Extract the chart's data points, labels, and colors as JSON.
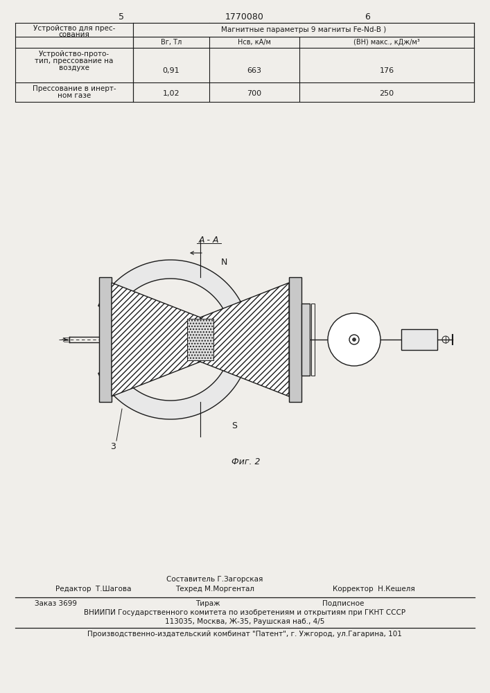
{
  "page_numbers": [
    "5",
    "1770080",
    "6"
  ],
  "table": {
    "col1_header1": "Устройство для прес-",
    "col1_header2": "сования",
    "merged_header": "Магнитные параметры 9 магниты Fe-Nd-B )",
    "col2_header": "Вг, Тл",
    "col3_header": "Нсв, кА/м",
    "col4_header": "(ВН) макс., кДж/м³",
    "row1_col1_1": "Устройство-прото-",
    "row1_col1_2": "тип, прессование на",
    "row1_col1_3": "воздухе",
    "row1_col2": "0,91",
    "row1_col3": "663",
    "row1_col4": "176",
    "row2_col1_1": "Прессование в инерт-",
    "row2_col1_2": "ном газе",
    "row2_col2": "1,02",
    "row2_col3": "700",
    "row2_col4": "250"
  },
  "fig_label": "Фиг. 2",
  "label_N": "N",
  "label_S": "S",
  "label_AA": "A - A",
  "label_3": "3",
  "footer": {
    "editor_label": "Редактор  Т.Шагова",
    "composer_label": "Составитель Г.Загорская",
    "tech_label": "Техред М.Моргентал",
    "corrector_label": "Корректор  Н.Кешеля",
    "order": "Заказ 3699",
    "tirazh": "Тираж",
    "podpisnoe": "Подписное",
    "vniiipi": "ВНИИПИ Государственного комитета по изобретениям и открытиям при ГКНТ СССР",
    "address": "113035, Москва, Ж-35, Раушская наб., 4/5",
    "production": "Производственно-издательский комбинат \"Патент\", г. Ужгород, ул.Гагарина, 101"
  },
  "bg_color": "#f0eeea",
  "line_color": "#1a1a1a"
}
